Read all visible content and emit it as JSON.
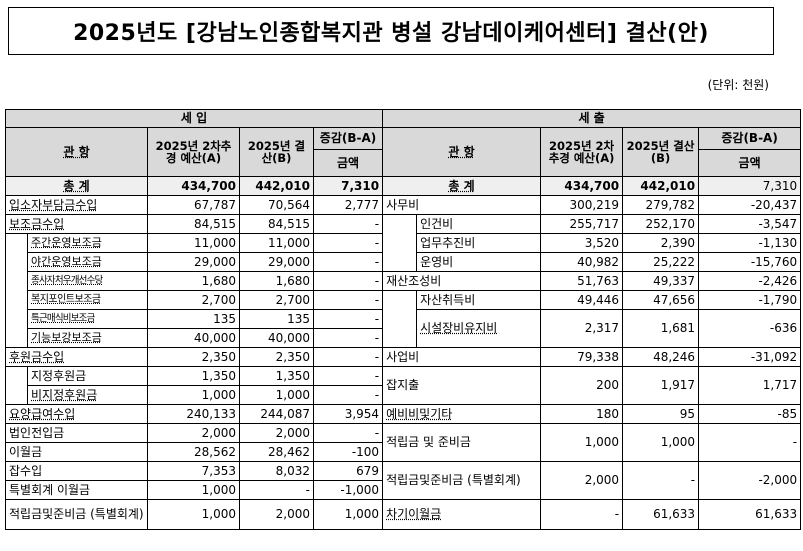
{
  "title": "2025년도 [강남노인종합복지관 병설 강남데이케어센터] 결산(안)",
  "unit": "(단위: 천원)",
  "headers": {
    "revenue": "세 입",
    "expense": "세 출",
    "gwanhang": "관 항",
    "budget": "2025년 2차추경 예산(A)",
    "settle": "2025년 결산(B)",
    "diff": "증감(B-A)",
    "amount": "금액"
  },
  "total": {
    "label": "총 계",
    "rev_budget": "434,700",
    "rev_settle": "442,010",
    "rev_diff": "7,310",
    "exp_budget": "434,700",
    "exp_settle": "442,010",
    "exp_diff": "7,310"
  },
  "revenue_rows": [
    {
      "label": "입소자부담금수입",
      "budget": "67,787",
      "settle": "70,564",
      "diff": "2,777"
    },
    {
      "label": "보조금수입",
      "budget": "84,515",
      "settle": "84,515",
      "diff": "-"
    },
    {
      "label": "주간운영보조금",
      "budget": "11,000",
      "settle": "11,000",
      "diff": "-"
    },
    {
      "label": "야간운영보조금",
      "budget": "29,000",
      "settle": "29,000",
      "diff": "-"
    },
    {
      "label": "종사자처우개선수당",
      "budget": "1,680",
      "settle": "1,680",
      "diff": "-"
    },
    {
      "label": "복지포인트보조금",
      "budget": "2,700",
      "settle": "2,700",
      "diff": "-"
    },
    {
      "label": "특근매식비보조금",
      "budget": "135",
      "settle": "135",
      "diff": "-"
    },
    {
      "label": "기능보강보조금",
      "budget": "40,000",
      "settle": "40,000",
      "diff": "-"
    },
    {
      "label": "후원금수입",
      "budget": "2,350",
      "settle": "2,350",
      "diff": "-"
    },
    {
      "label": "지정후원금",
      "budget": "1,350",
      "settle": "1,350",
      "diff": "-"
    },
    {
      "label": "비지정후원금",
      "budget": "1,000",
      "settle": "1,000",
      "diff": "-"
    },
    {
      "label": "요양급여수입",
      "budget": "240,133",
      "settle": "244,087",
      "diff": "3,954"
    },
    {
      "label": "법인전입금",
      "budget": "2,000",
      "settle": "2,000",
      "diff": "-"
    },
    {
      "label": "이월금",
      "budget": "28,562",
      "settle": "28,462",
      "diff": "-100"
    },
    {
      "label": "잡수입",
      "budget": "7,353",
      "settle": "8,032",
      "diff": "679"
    },
    {
      "label": "특별회계 이월금",
      "budget": "1,000",
      "settle": "-",
      "diff": "-1,000"
    },
    {
      "label": "적립금및준비금 (특별회계)",
      "budget": "1,000",
      "settle": "2,000",
      "diff": "1,000"
    }
  ],
  "expense_rows": [
    {
      "label": "사무비",
      "budget": "300,219",
      "settle": "279,782",
      "diff": "-20,437"
    },
    {
      "label": "인건비",
      "budget": "255,717",
      "settle": "252,170",
      "diff": "-3,547"
    },
    {
      "label": "업무추진비",
      "budget": "3,520",
      "settle": "2,390",
      "diff": "-1,130"
    },
    {
      "label": "운영비",
      "budget": "40,982",
      "settle": "25,222",
      "diff": "-15,760"
    },
    {
      "label": "재산조성비",
      "budget": "51,763",
      "settle": "49,337",
      "diff": "-2,426"
    },
    {
      "label": "자산취득비",
      "budget": "49,446",
      "settle": "47,656",
      "diff": "-1,790"
    },
    {
      "label": "시설장비유지비",
      "budget": "2,317",
      "settle": "1,681",
      "diff": "-636"
    },
    {
      "label": "사업비",
      "budget": "79,338",
      "settle": "48,246",
      "diff": "-31,092"
    },
    {
      "label": "잡지출",
      "budget": "200",
      "settle": "1,917",
      "diff": "1,717"
    },
    {
      "label": "예비비및기타",
      "budget": "180",
      "settle": "95",
      "diff": "-85"
    },
    {
      "label": "적립금 및 준비금",
      "budget": "1,000",
      "settle": "1,000",
      "diff": "-"
    },
    {
      "label": "적립금및준비금 (특별회계)",
      "budget": "2,000",
      "settle": "-",
      "diff": "-2,000"
    },
    {
      "label": "차기이월금",
      "budget": "-",
      "settle": "61,633",
      "diff": "61,633"
    }
  ]
}
